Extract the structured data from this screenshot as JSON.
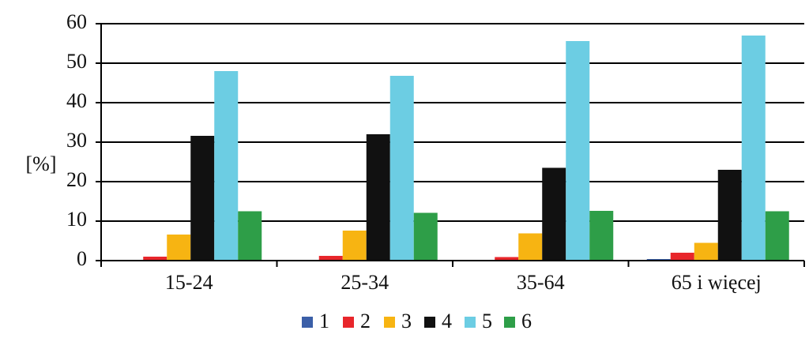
{
  "chart_data": {
    "type": "bar",
    "ylabel": "[%]",
    "ylim": [
      0,
      60
    ],
    "yticks": [
      "0",
      "10",
      "20",
      "30",
      "40",
      "50",
      "60"
    ],
    "grid": true,
    "legend_position": "bottom",
    "categories": [
      "15-24",
      "25-34",
      "35-64",
      "65 i więcej"
    ],
    "series": [
      {
        "name": "1",
        "color": "#3b5fa8",
        "values": [
          0,
          0,
          0,
          0.4
        ]
      },
      {
        "name": "2",
        "color": "#e8262b",
        "values": [
          1.0,
          1.2,
          0.9,
          2.0
        ]
      },
      {
        "name": "3",
        "color": "#f7b412",
        "values": [
          6.6,
          7.6,
          6.9,
          4.5
        ]
      },
      {
        "name": "4",
        "color": "#111111",
        "values": [
          31.6,
          32.0,
          23.5,
          23.0
        ]
      },
      {
        "name": "5",
        "color": "#6ccde3",
        "values": [
          48.0,
          46.8,
          55.6,
          57.0
        ]
      },
      {
        "name": "6",
        "color": "#2e9e48",
        "values": [
          12.5,
          12.1,
          12.6,
          12.5
        ]
      }
    ]
  }
}
